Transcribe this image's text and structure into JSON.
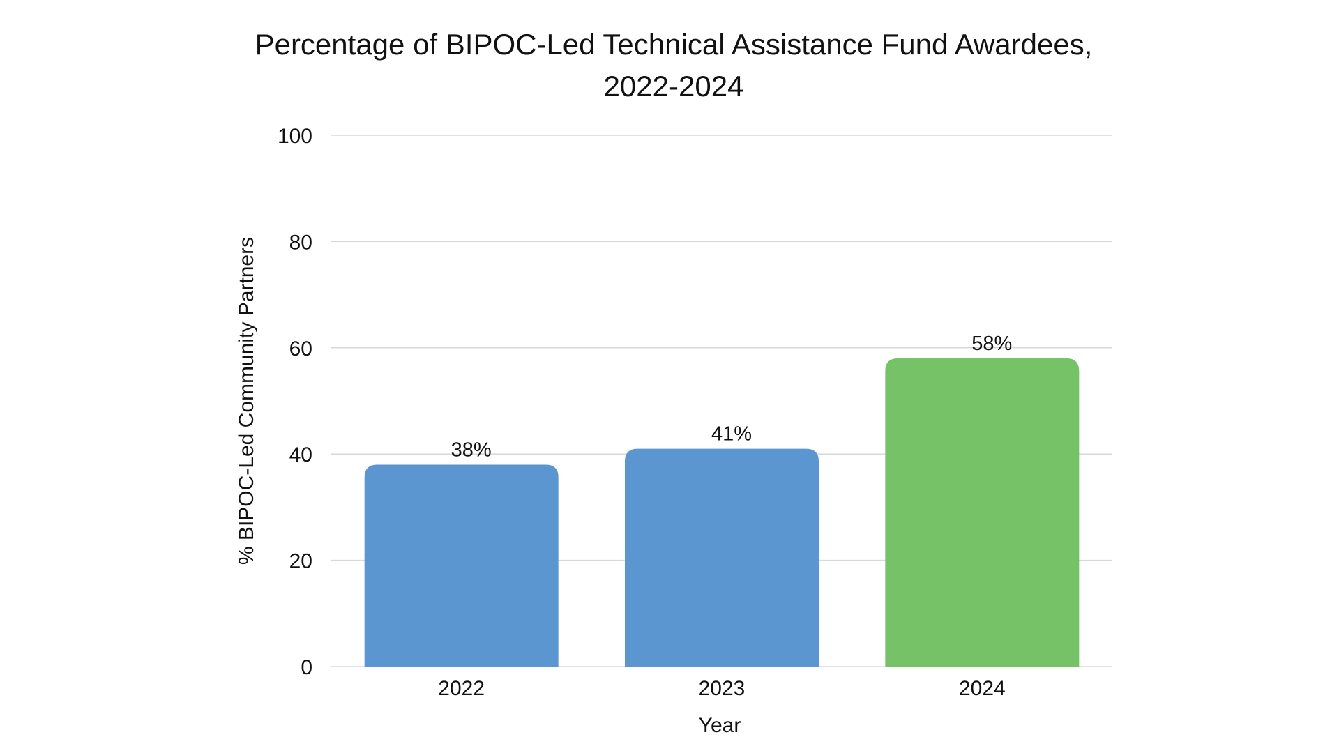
{
  "chart_data": {
    "type": "bar",
    "title_lines": [
      "Percentage of BIPOC-Led Technical Assistance Fund Awardees,",
      "2022-2024"
    ],
    "xlabel": "Year",
    "ylabel": "% BIPOC-Led Community Partners",
    "categories": [
      "2022",
      "2023",
      "2024"
    ],
    "values": [
      38,
      41,
      58
    ],
    "value_labels": [
      "38%",
      "41%",
      "58%"
    ],
    "bar_colors": [
      "#5b96d1",
      "#5b96d1",
      "#76c267"
    ],
    "ylim": [
      0,
      100
    ],
    "yticks": [
      0,
      20,
      40,
      60,
      80,
      100
    ],
    "grid": true,
    "legend": "none"
  }
}
